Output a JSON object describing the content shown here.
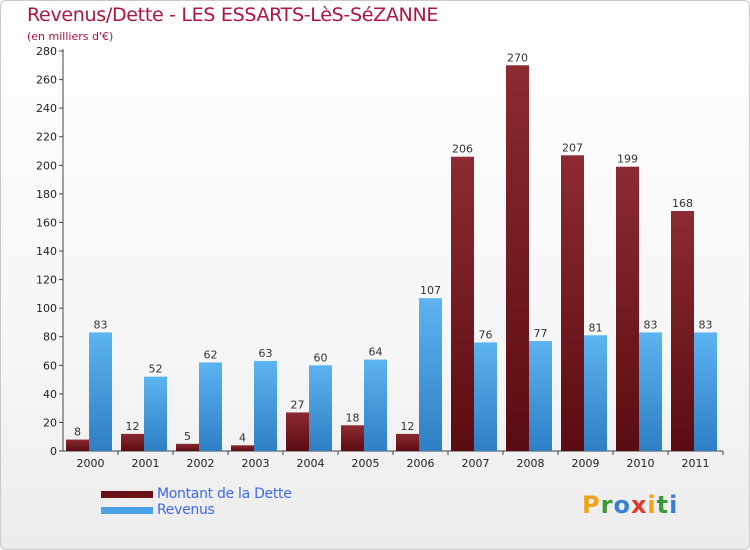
{
  "chart_data": {
    "type": "bar",
    "title": "Revenus/Dette - LES ESSARTS-LèS-SéZANNE",
    "subtitle": "(en milliers d'€)",
    "xlabel": "",
    "ylabel": "",
    "ylim": [
      0,
      280
    ],
    "ytick_step": 20,
    "grid": false,
    "legend_position": "bottom-left",
    "categories": [
      "2000",
      "2001",
      "2002",
      "2003",
      "2004",
      "2005",
      "2006",
      "2007",
      "2008",
      "2009",
      "2010",
      "2011"
    ],
    "series": [
      {
        "name": "Montant de la Dette",
        "color": "#7a1a1f",
        "values": [
          8,
          12,
          5,
          4,
          27,
          18,
          12,
          206,
          270,
          207,
          199,
          168
        ]
      },
      {
        "name": "Revenus",
        "color": "#4aa3e6",
        "values": [
          83,
          52,
          62,
          63,
          60,
          64,
          107,
          76,
          77,
          81,
          83,
          83
        ]
      }
    ]
  },
  "brand": {
    "letters": [
      "P",
      "r",
      "o",
      "x",
      "i",
      "t",
      "i"
    ],
    "colors": [
      "#f0a21b",
      "#3a9a3a",
      "#3a7fd6",
      "#e03a2a",
      "#f0a21b",
      "#3a9a3a",
      "#3a7fd6"
    ]
  }
}
